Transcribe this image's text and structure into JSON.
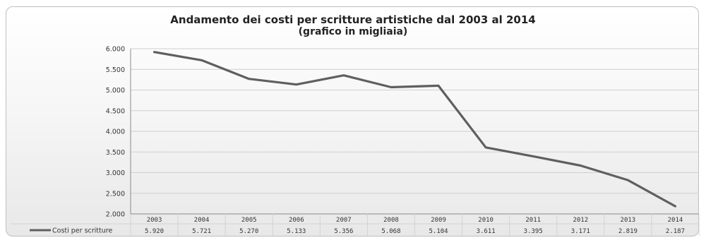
{
  "chart_data": {
    "type": "line",
    "title": "Andamento dei costi per scritture artistiche dal 2003 al 2014",
    "subtitle": "(grafico in migliaia)",
    "categories": [
      "2003",
      "2004",
      "2005",
      "2006",
      "2007",
      "2008",
      "2009",
      "2010",
      "2011",
      "2012",
      "2013",
      "2014"
    ],
    "series": [
      {
        "name": "Costi per scritture",
        "values": [
          5920,
          5721,
          5270,
          5133,
          5356,
          5068,
          5104,
          3611,
          3395,
          3171,
          2819,
          2187
        ],
        "value_labels": [
          "5.920",
          "5.721",
          "5.270",
          "5.133",
          "5.356",
          "5.068",
          "5.104",
          "3.611",
          "3.395",
          "3.171",
          "2.819",
          "2.187"
        ]
      }
    ],
    "ylim": [
      2000,
      6000
    ],
    "y_ticks": [
      2000,
      2500,
      3000,
      3500,
      4000,
      4500,
      5000,
      5500,
      6000
    ],
    "y_tick_labels": [
      "2.000",
      "2.500",
      "3.000",
      "3.500",
      "4.000",
      "4.500",
      "5.000",
      "5.500",
      "6.000"
    ],
    "grid": true,
    "legend": "data-table",
    "line_color": "#5f5f5f",
    "grid_color": "#cfcfcf"
  }
}
